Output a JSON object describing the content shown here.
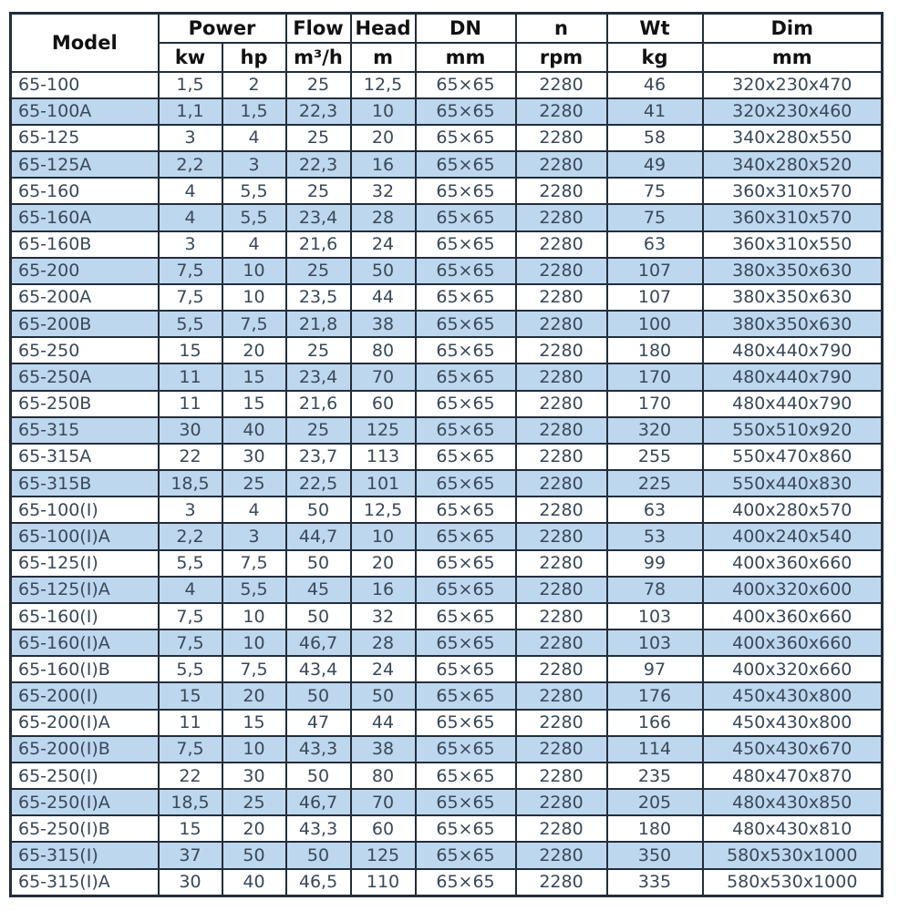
{
  "colors": {
    "row_stripe": "#bdd7ee",
    "border": "#232d3b",
    "data_text": "#3a4859",
    "header_text": "#111111"
  },
  "table": {
    "header": {
      "model": "Model",
      "power": "Power",
      "power_units": [
        "kw",
        "hp"
      ],
      "cols": [
        {
          "label": "Flow",
          "unit": "m³/h"
        },
        {
          "label": "Head",
          "unit": "m"
        },
        {
          "label": "DN",
          "unit": "mm"
        },
        {
          "label": "n",
          "unit": "rpm"
        },
        {
          "label": "Wt",
          "unit": "kg"
        },
        {
          "label": "Dim",
          "unit": "mm"
        }
      ]
    },
    "columns": [
      {
        "id": "model",
        "align": "left"
      },
      {
        "id": "power-kw",
        "align": "center"
      },
      {
        "id": "power-hp",
        "align": "center"
      },
      {
        "id": "flow",
        "align": "center"
      },
      {
        "id": "head",
        "align": "center"
      },
      {
        "id": "dn",
        "align": "center"
      },
      {
        "id": "rpm",
        "align": "center"
      },
      {
        "id": "weight",
        "align": "center"
      },
      {
        "id": "dim",
        "align": "center"
      }
    ],
    "rows": [
      [
        "65-100",
        "1,5",
        "2",
        "25",
        "12,5",
        "65×65",
        "2280",
        "46",
        "320x230x470"
      ],
      [
        "65-100A",
        "1,1",
        "1,5",
        "22,3",
        "10",
        "65×65",
        "2280",
        "41",
        "320x230x460"
      ],
      [
        "65-125",
        "3",
        "4",
        "25",
        "20",
        "65×65",
        "2280",
        "58",
        "340x280x550"
      ],
      [
        "65-125A",
        "2,2",
        "3",
        "22,3",
        "16",
        "65×65",
        "2280",
        "49",
        "340x280x520"
      ],
      [
        "65-160",
        "4",
        "5,5",
        "25",
        "32",
        "65×65",
        "2280",
        "75",
        "360x310x570"
      ],
      [
        "65-160A",
        "4",
        "5,5",
        "23,4",
        "28",
        "65×65",
        "2280",
        "75",
        "360x310x570"
      ],
      [
        "65-160B",
        "3",
        "4",
        "21,6",
        "24",
        "65×65",
        "2280",
        "63",
        "360x310x550"
      ],
      [
        "65-200",
        "7,5",
        "10",
        "25",
        "50",
        "65×65",
        "2280",
        "107",
        "380x350x630"
      ],
      [
        "65-200A",
        "7,5",
        "10",
        "23,5",
        "44",
        "65×65",
        "2280",
        "107",
        "380x350x630"
      ],
      [
        "65-200B",
        "5,5",
        "7,5",
        "21,8",
        "38",
        "65×65",
        "2280",
        "100",
        "380x350x630"
      ],
      [
        "65-250",
        "15",
        "20",
        "25",
        "80",
        "65×65",
        "2280",
        "180",
        "480x440x790"
      ],
      [
        "65-250A",
        "11",
        "15",
        "23,4",
        "70",
        "65×65",
        "2280",
        "170",
        "480x440x790"
      ],
      [
        "65-250B",
        "11",
        "15",
        "21,6",
        "60",
        "65×65",
        "2280",
        "170",
        "480x440x790"
      ],
      [
        "65-315",
        "30",
        "40",
        "25",
        "125",
        "65×65",
        "2280",
        "320",
        "550x510x920"
      ],
      [
        "65-315A",
        "22",
        "30",
        "23,7",
        "113",
        "65×65",
        "2280",
        "255",
        "550x470x860"
      ],
      [
        "65-315B",
        "18,5",
        "25",
        "22,5",
        "101",
        "65×65",
        "2280",
        "225",
        "550x440x830"
      ],
      [
        "65-100(I)",
        "3",
        "4",
        "50",
        "12,5",
        "65×65",
        "2280",
        "63",
        "400x280x570"
      ],
      [
        "65-100(I)A",
        "2,2",
        "3",
        "44,7",
        "10",
        "65×65",
        "2280",
        "53",
        "400x240x540"
      ],
      [
        "65-125(I)",
        "5,5",
        "7,5",
        "50",
        "20",
        "65×65",
        "2280",
        "99",
        "400x360x660"
      ],
      [
        "65-125(I)A",
        "4",
        "5,5",
        "45",
        "16",
        "65×65",
        "2280",
        "78",
        "400x320x600"
      ],
      [
        "65-160(I)",
        "7,5",
        "10",
        "50",
        "32",
        "65×65",
        "2280",
        "103",
        "400x360x660"
      ],
      [
        "65-160(I)A",
        "7,5",
        "10",
        "46,7",
        "28",
        "65×65",
        "2280",
        "103",
        "400x360x660"
      ],
      [
        "65-160(I)B",
        "5,5",
        "7,5",
        "43,4",
        "24",
        "65×65",
        "2280",
        "97",
        "400x320x660"
      ],
      [
        "65-200(I)",
        "15",
        "20",
        "50",
        "50",
        "65×65",
        "2280",
        "176",
        "450x430x800"
      ],
      [
        "65-200(I)A",
        "11",
        "15",
        "47",
        "44",
        "65×65",
        "2280",
        "166",
        "450x430x800"
      ],
      [
        "65-200(I)B",
        "7,5",
        "10",
        "43,3",
        "38",
        "65×65",
        "2280",
        "114",
        "450x430x670"
      ],
      [
        "65-250(I)",
        "22",
        "30",
        "50",
        "80",
        "65×65",
        "2280",
        "235",
        "480x470x870"
      ],
      [
        "65-250(I)A",
        "18,5",
        "25",
        "46,7",
        "70",
        "65×65",
        "2280",
        "205",
        "480x430x850"
      ],
      [
        "65-250(I)B",
        "15",
        "20",
        "43,3",
        "60",
        "65×65",
        "2280",
        "180",
        "480x430x810"
      ],
      [
        "65-315(I)",
        "37",
        "50",
        "50",
        "125",
        "65×65",
        "2280",
        "350",
        "580x530x1000"
      ],
      [
        "65-315(I)A",
        "30",
        "40",
        "46,5",
        "110",
        "65×65",
        "2280",
        "335",
        "580x530x1000"
      ]
    ]
  }
}
